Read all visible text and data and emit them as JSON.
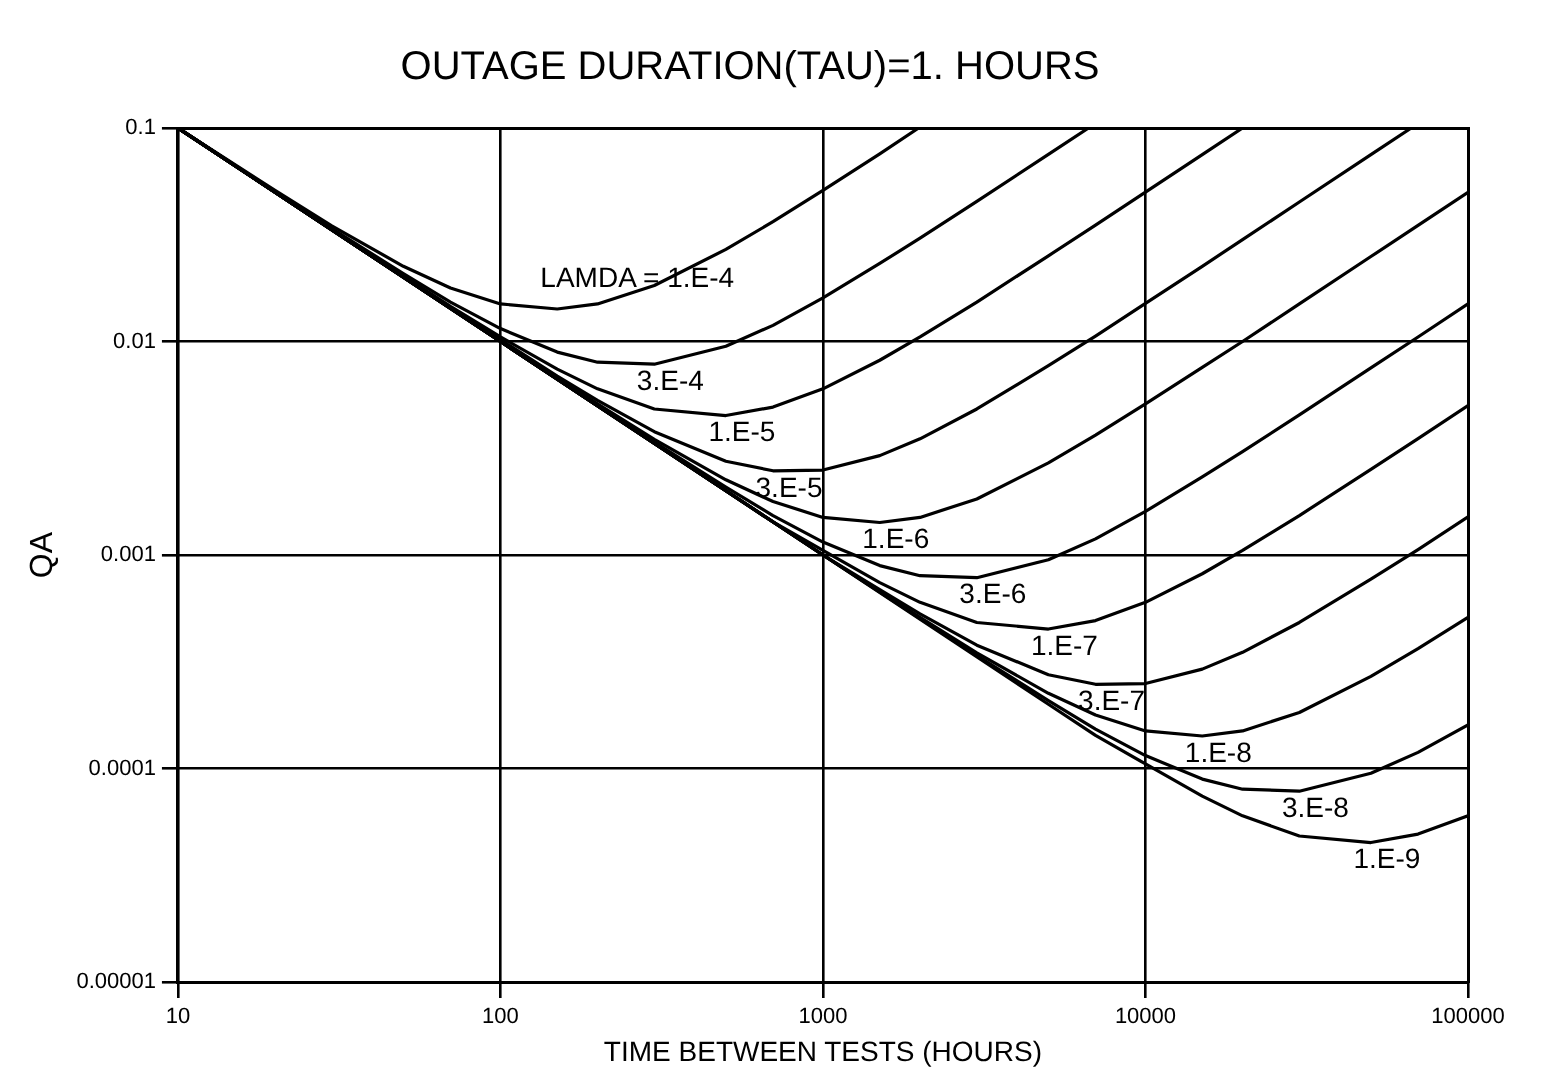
{
  "chart_data": {
    "type": "line",
    "title": "OUTAGE DURATION(TAU)=1. HOURS",
    "xlabel": "TIME BETWEEN TESTS (HOURS)",
    "ylabel": "QA",
    "log": "xy",
    "grid": true,
    "legend": false,
    "marker": "none",
    "line_style": "solid",
    "xlim": [
      10,
      100000
    ],
    "xticks": [
      10,
      100,
      1000,
      10000,
      100000
    ],
    "ylim": [
      1e-05,
      0.1
    ],
    "yticks": [
      {
        "value": 1e-05,
        "label": "0.00001"
      },
      0.0001,
      0.001,
      0.01,
      0.1
    ],
    "series": [
      {
        "name": "LAMDA = 1.E-4",
        "color": "#000000",
        "x": [
          10,
          20,
          30,
          50,
          70,
          100,
          150,
          200,
          300,
          500,
          700,
          1000,
          1500,
          1980
        ],
        "values": [
          0.1,
          0.051,
          0.0348,
          0.0225,
          0.0178,
          0.015,
          0.0142,
          0.015,
          0.0183,
          0.027,
          0.0364,
          0.051,
          0.0757,
          0.1
        ]
      },
      {
        "name": "3.E-4",
        "color": "#000000",
        "x": [
          10,
          20,
          30,
          50,
          70,
          100,
          150,
          200,
          300,
          500,
          700,
          1000,
          1500,
          2000,
          3000,
          5000,
          6660
        ],
        "values": [
          0.1,
          0.0503,
          0.0338,
          0.0208,
          0.0153,
          0.0115,
          0.00892,
          0.008,
          0.00783,
          0.0095,
          0.0119,
          0.016,
          0.0232,
          0.0305,
          0.0453,
          0.0752,
          0.1
        ]
      },
      {
        "name": "1.E-5",
        "color": "#000000",
        "x": [
          10,
          20,
          30,
          50,
          70,
          100,
          150,
          200,
          300,
          500,
          700,
          1000,
          1500,
          2000,
          3000,
          5000,
          7000,
          10000,
          15000,
          20000
        ],
        "values": [
          0.1,
          0.0501,
          0.0335,
          0.0203,
          0.0146,
          0.0105,
          0.00742,
          0.006,
          0.00483,
          0.0045,
          0.00493,
          0.006,
          0.00817,
          0.0105,
          0.0153,
          0.0252,
          0.0351,
          0.0501,
          0.0751,
          0.1
        ]
      },
      {
        "name": "3.E-5",
        "color": "#000000",
        "x": [
          10,
          20,
          30,
          50,
          70,
          100,
          150,
          200,
          300,
          500,
          700,
          1000,
          1500,
          2000,
          3000,
          5000,
          7000,
          10000,
          15000,
          20000,
          30000,
          50000,
          66700
        ],
        "values": [
          0.1,
          0.05,
          0.0333,
          0.0201,
          0.0144,
          0.0102,
          0.00689,
          0.0053,
          0.00378,
          0.00275,
          0.00248,
          0.0025,
          0.00292,
          0.0035,
          0.00483,
          0.0077,
          0.0106,
          0.0151,
          0.0225,
          0.03,
          0.045,
          0.075,
          0.1
        ]
      },
      {
        "name": "1.E-6",
        "color": "#000000",
        "x": [
          10,
          100,
          200,
          300,
          500,
          700,
          1000,
          1500,
          2000,
          3000,
          5000,
          7000,
          10000,
          15000,
          20000,
          30000,
          50000,
          70000,
          100000
        ],
        "values": [
          0.1,
          0.0101,
          0.0051,
          0.00348,
          0.00225,
          0.00178,
          0.0015,
          0.00142,
          0.0015,
          0.00183,
          0.0027,
          0.00364,
          0.0051,
          0.00757,
          0.01,
          0.015,
          0.025,
          0.035,
          0.05
        ]
      },
      {
        "name": "3.E-6",
        "color": "#000000",
        "x": [
          10,
          100,
          200,
          300,
          500,
          700,
          1000,
          1500,
          2000,
          3000,
          5000,
          7000,
          10000,
          15000,
          20000,
          30000,
          50000,
          70000,
          100000
        ],
        "values": [
          0.1,
          0.01,
          0.005,
          0.00338,
          0.00208,
          0.00153,
          0.00115,
          0.000892,
          0.0008,
          0.000783,
          0.00095,
          0.00119,
          0.0016,
          0.00232,
          0.00305,
          0.00453,
          0.00752,
          0.0105,
          0.015
        ]
      },
      {
        "name": "1.E-7",
        "color": "#000000",
        "x": [
          10,
          100,
          500,
          700,
          1000,
          1500,
          2000,
          3000,
          5000,
          7000,
          10000,
          15000,
          20000,
          30000,
          50000,
          70000,
          100000
        ],
        "values": [
          0.1,
          0.01,
          0.002,
          0.00143,
          0.00105,
          0.000742,
          0.0006,
          0.000483,
          0.00045,
          0.000493,
          0.0006,
          0.000817,
          0.00105,
          0.00153,
          0.00252,
          0.00351,
          0.00501
        ]
      },
      {
        "name": "3.E-7",
        "color": "#000000",
        "x": [
          10,
          100,
          1000,
          1500,
          2000,
          3000,
          5000,
          7000,
          10000,
          15000,
          20000,
          30000,
          50000,
          70000,
          100000
        ],
        "values": [
          0.1,
          0.01,
          0.001,
          0.000689,
          0.00053,
          0.000378,
          0.000275,
          0.000248,
          0.00025,
          0.000292,
          0.00035,
          0.000483,
          0.00077,
          0.00106,
          0.00151
        ]
      },
      {
        "name": "1.E-8",
        "color": "#000000",
        "x": [
          10,
          100,
          1000,
          2000,
          3000,
          5000,
          7000,
          10000,
          15000,
          20000,
          30000,
          50000,
          70000,
          100000
        ],
        "values": [
          0.1,
          0.01,
          0.001,
          0.00051,
          0.000348,
          0.000225,
          0.000178,
          0.00015,
          0.000142,
          0.00015,
          0.000183,
          0.00027,
          0.000364,
          0.00051
        ]
      },
      {
        "name": "3.E-8",
        "color": "#000000",
        "x": [
          10,
          100,
          1000,
          3000,
          5000,
          7000,
          10000,
          15000,
          20000,
          30000,
          50000,
          70000,
          100000
        ],
        "values": [
          0.1,
          0.01,
          0.001,
          0.000338,
          0.000208,
          0.000153,
          0.000115,
          8.92e-05,
          8e-05,
          7.83e-05,
          9.5e-05,
          0.000119,
          0.00016
        ]
      },
      {
        "name": "1.E-9",
        "color": "#000000",
        "x": [
          10,
          100,
          1000,
          5000,
          7000,
          10000,
          15000,
          20000,
          30000,
          50000,
          70000,
          100000
        ],
        "values": [
          0.1,
          0.01,
          0.001,
          0.0002,
          0.000143,
          0.000105,
          7.42e-05,
          6e-05,
          4.83e-05,
          4.5e-05,
          4.93e-05,
          6e-05
        ]
      }
    ]
  }
}
